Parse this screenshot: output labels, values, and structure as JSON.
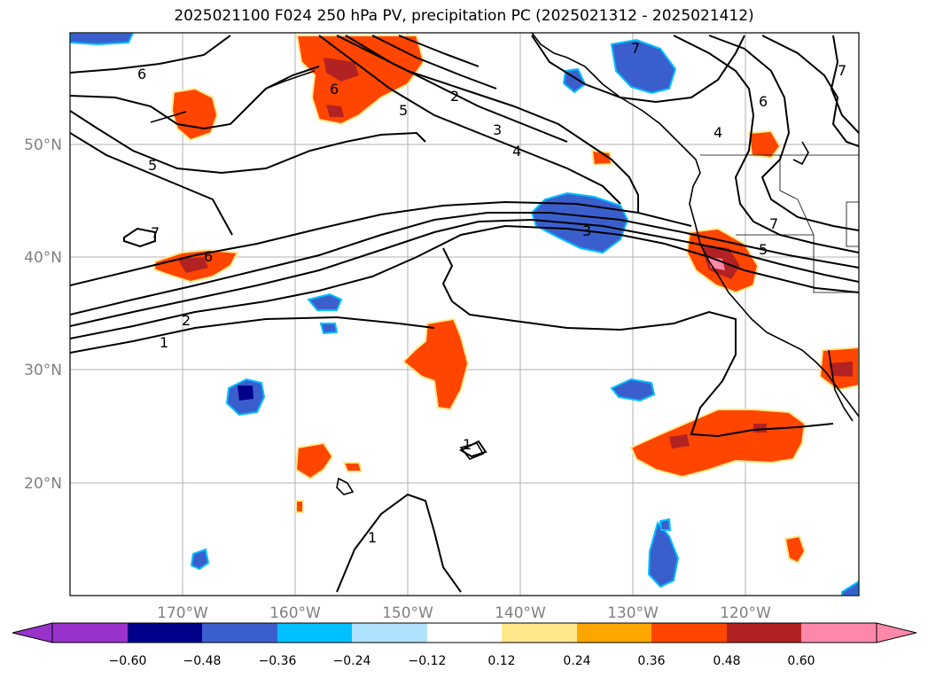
{
  "title": "2025021100 F024 250 hPa PV, precipitation PC (2025021312 - 2025021412)",
  "map": {
    "lon_ticks": [
      "170°W",
      "160°W",
      "150°W",
      "140°W",
      "130°W",
      "120°W"
    ],
    "lat_ticks": [
      "50°N",
      "40°N",
      "30°N",
      "20°N"
    ],
    "pv_contour_labels": [
      "1",
      "2",
      "3",
      "4",
      "5",
      "6",
      "7"
    ]
  },
  "colorbar": {
    "tick_labels": [
      "−0.60",
      "−0.48",
      "−0.36",
      "−0.24",
      "−0.12",
      "0.12",
      "0.24",
      "0.36",
      "0.48",
      "0.60"
    ],
    "colors": [
      "#9933cc",
      "#00008b",
      "#3a5fcd",
      "#00bfff",
      "#b0e2ff",
      "#ffffff",
      "#ffe88c",
      "#ffa500",
      "#ff4500",
      "#b22222",
      "#ff88aa",
      "#ff88aa"
    ]
  },
  "colors": {
    "positive_strong": "#b22222",
    "positive": "#ff4500",
    "positive_weak": "#ffa500",
    "negative": "#3a5fcd",
    "negative_strong": "#00008b",
    "negative_weak": "#00bfff",
    "contour": "#000000",
    "coast": "#000000"
  }
}
